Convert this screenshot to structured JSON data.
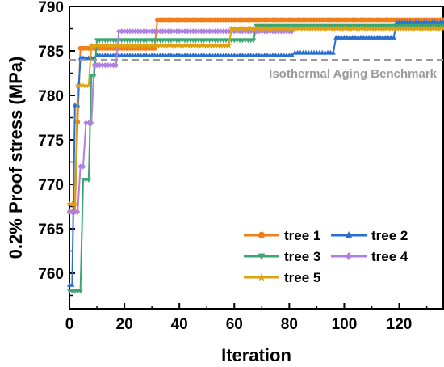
{
  "chart_data": {
    "type": "line",
    "xlabel": "Iteration",
    "ylabel": "0.2% Proof stress (MPa)",
    "xlim": [
      0,
      136
    ],
    "ylim": [
      756,
      790
    ],
    "xticks": [
      0,
      20,
      40,
      60,
      80,
      100,
      120
    ],
    "yticks": [
      760,
      765,
      770,
      775,
      780,
      785,
      790
    ],
    "grid": false,
    "legend_position": "bottom-right",
    "annotations": [
      {
        "text": "Isothermal Aging Benchmark",
        "y": 784.0,
        "style": "dashed",
        "color": "#9a9a9a"
      }
    ],
    "series": [
      {
        "name": "tree 1",
        "color": "#f07f19",
        "marker": "circle",
        "points": [
          [
            0,
            766.9
          ],
          [
            2,
            766.9
          ],
          [
            3,
            777.0
          ],
          [
            4,
            785.3
          ],
          [
            31,
            785.3
          ],
          [
            32,
            788.5
          ],
          [
            136,
            788.5
          ]
        ]
      },
      {
        "name": "tree 2",
        "color": "#2a6fd0",
        "marker": "triangle-up",
        "points": [
          [
            0,
            758.7
          ],
          [
            1,
            758.7
          ],
          [
            2,
            778.9
          ],
          [
            3,
            778.9
          ],
          [
            4,
            784.2
          ],
          [
            9,
            784.2
          ],
          [
            10,
            784.5
          ],
          [
            81,
            784.5
          ],
          [
            82,
            784.8
          ],
          [
            96,
            784.8
          ],
          [
            97,
            786.5
          ],
          [
            118,
            786.5
          ],
          [
            119,
            788.2
          ],
          [
            136,
            788.2
          ]
        ]
      },
      {
        "name": "tree 3",
        "color": "#3aa773",
        "marker": "triangle-down",
        "points": [
          [
            0,
            758.0
          ],
          [
            4,
            758.0
          ],
          [
            5,
            770.5
          ],
          [
            7,
            770.5
          ],
          [
            8,
            782.2
          ],
          [
            9,
            782.2
          ],
          [
            10,
            786.2
          ],
          [
            67,
            786.2
          ],
          [
            68,
            787.8
          ],
          [
            136,
            787.8
          ]
        ]
      },
      {
        "name": "tree 4",
        "color": "#b07fe0",
        "marker": "diamond",
        "points": [
          [
            0,
            766.9
          ],
          [
            3,
            766.9
          ],
          [
            4,
            772.0
          ],
          [
            5,
            772.0
          ],
          [
            6,
            776.9
          ],
          [
            8,
            776.9
          ],
          [
            9,
            783.4
          ],
          [
            17,
            783.4
          ],
          [
            18,
            787.2
          ],
          [
            81,
            787.2
          ]
        ]
      },
      {
        "name": "tree 5",
        "color": "#e0a010",
        "marker": "star",
        "points": [
          [
            0,
            767.8
          ],
          [
            2,
            767.8
          ],
          [
            3,
            781.1
          ],
          [
            7,
            781.1
          ],
          [
            8,
            785.6
          ],
          [
            58,
            785.6
          ],
          [
            59,
            787.5
          ],
          [
            136,
            787.5
          ]
        ]
      }
    ]
  }
}
